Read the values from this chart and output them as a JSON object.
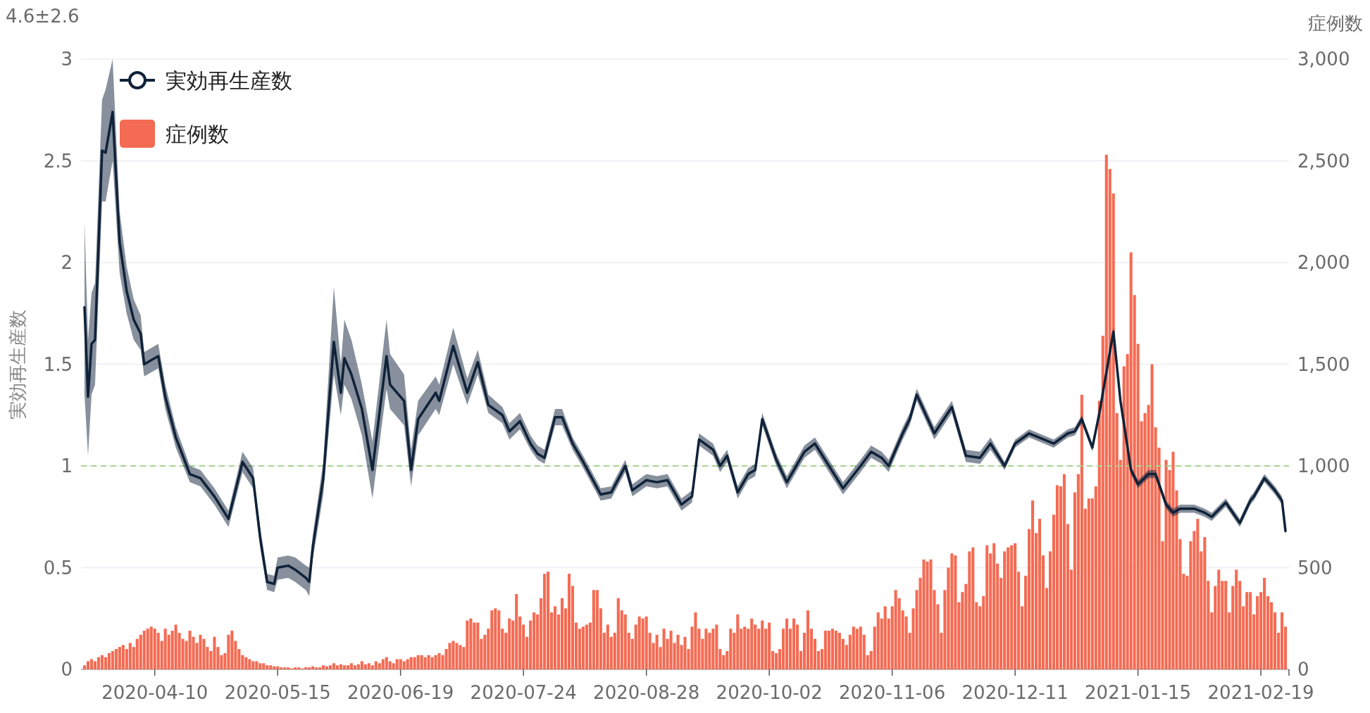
{
  "chart_data": {
    "type": "bar",
    "ylabel": "実効再生産数",
    "y2label": "症例数",
    "annotations": [
      "4.6±2.6"
    ],
    "xlim": [
      "2020-03-20",
      "2021-02-27"
    ],
    "xticks": [
      "2020-04-10",
      "2020-05-15",
      "2020-06-19",
      "2020-07-24",
      "2020-08-28",
      "2020-10-02",
      "2020-11-06",
      "2020-12-11",
      "2021-01-15",
      "2021-02-19"
    ],
    "ylim": [
      0,
      3
    ],
    "yticks": [
      0,
      0.5,
      1,
      1.5,
      2,
      2.5,
      3
    ],
    "y2lim": [
      0,
      3000
    ],
    "y2ticks": [
      0,
      500,
      {
        "value": 1000,
        "label": "1,000"
      },
      {
        "value": 1500,
        "label": "1,500"
      },
      {
        "value": 2000,
        "label": "2,000"
      },
      {
        "value": 2500,
        "label": "2,500"
      },
      {
        "value": 3000,
        "label": "3,000"
      }
    ],
    "grid": "y",
    "legend": "top left",
    "ref_lines": [
      {
        "axis": "y",
        "value": 1,
        "color": "#a8d48e",
        "line_style": "dashed"
      }
    ],
    "series": [
      {
        "name": "実効再生産数",
        "type": "line",
        "color": "#0f2239",
        "x": [
          "2020-03-21",
          "2020-03-22",
          "2020-03-23",
          "2020-03-24",
          "2020-03-26",
          "2020-03-27",
          "2020-03-29",
          "2020-03-31",
          "2020-04-02",
          "2020-04-04",
          "2020-04-06",
          "2020-04-07",
          "2020-04-11",
          "2020-04-13",
          "2020-04-16",
          "2020-04-20",
          "2020-04-23",
          "2020-04-27",
          "2020-05-01",
          "2020-05-05",
          "2020-05-08",
          "2020-05-10",
          "2020-05-12",
          "2020-05-14",
          "2020-05-15",
          "2020-05-18",
          "2020-05-20",
          "2020-05-23",
          "2020-05-24",
          "2020-05-25",
          "2020-05-28",
          "2020-05-31",
          "2020-06-02",
          "2020-06-03",
          "2020-06-05",
          "2020-06-08",
          "2020-06-11",
          "2020-06-15",
          "2020-06-16",
          "2020-06-20",
          "2020-06-22",
          "2020-06-24",
          "2020-06-29",
          "2020-06-30",
          "2020-07-04",
          "2020-07-08",
          "2020-07-11",
          "2020-07-14",
          "2020-07-18",
          "2020-07-20",
          "2020-07-23",
          "2020-07-26",
          "2020-07-28",
          "2020-07-30",
          "2020-08-02",
          "2020-08-04",
          "2020-08-07",
          "2020-08-10",
          "2020-08-15",
          "2020-08-18",
          "2020-08-22",
          "2020-08-24",
          "2020-08-28",
          "2020-08-31",
          "2020-09-03",
          "2020-09-07",
          "2020-09-10",
          "2020-09-12",
          "2020-09-16",
          "2020-09-18",
          "2020-09-20",
          "2020-09-23",
          "2020-09-26",
          "2020-09-28",
          "2020-09-30",
          "2020-10-04",
          "2020-10-07",
          "2020-10-12",
          "2020-10-15",
          "2020-10-19",
          "2020-10-23",
          "2020-10-28",
          "2020-10-31",
          "2020-11-03",
          "2020-11-05",
          "2020-11-09",
          "2020-11-11",
          "2020-11-13",
          "2020-11-18",
          "2020-11-23",
          "2020-11-27",
          "2020-12-01",
          "2020-12-04",
          "2020-12-08",
          "2020-12-11",
          "2020-12-15",
          "2020-12-22",
          "2020-12-26",
          "2020-12-28",
          "2020-12-30",
          "2021-01-02",
          "2021-01-04",
          "2021-01-08",
          "2021-01-10",
          "2021-01-13",
          "2021-01-15",
          "2021-01-18",
          "2021-01-20",
          "2021-01-23",
          "2021-01-25",
          "2021-01-27",
          "2021-01-31",
          "2021-02-03",
          "2021-02-05",
          "2021-02-09",
          "2021-02-13",
          "2021-02-16",
          "2021-02-17",
          "2021-02-20",
          "2021-02-23",
          "2021-02-25",
          "2021-02-26"
        ],
        "values": [
          1.78,
          1.34,
          1.6,
          1.62,
          2.55,
          2.54,
          2.74,
          2.1,
          1.86,
          1.72,
          1.65,
          1.5,
          1.54,
          1.34,
          1.14,
          0.96,
          0.94,
          0.85,
          0.74,
          1.02,
          0.94,
          0.65,
          0.43,
          0.42,
          0.5,
          0.51,
          0.49,
          0.45,
          0.43,
          0.6,
          0.94,
          1.61,
          1.36,
          1.53,
          1.45,
          1.28,
          0.98,
          1.54,
          1.4,
          1.32,
          0.98,
          1.23,
          1.36,
          1.32,
          1.59,
          1.36,
          1.51,
          1.3,
          1.25,
          1.17,
          1.22,
          1.11,
          1.06,
          1.04,
          1.24,
          1.24,
          1.11,
          1.02,
          0.86,
          0.87,
          1.0,
          0.88,
          0.93,
          0.92,
          0.93,
          0.81,
          0.85,
          1.13,
          1.08,
          1.0,
          1.05,
          0.87,
          0.96,
          0.98,
          1.23,
          1.03,
          0.92,
          1.07,
          1.11,
          1.0,
          0.89,
          1.0,
          1.07,
          1.04,
          1.0,
          1.16,
          1.23,
          1.35,
          1.16,
          1.29,
          1.05,
          1.04,
          1.11,
          1.0,
          1.11,
          1.16,
          1.11,
          1.16,
          1.17,
          1.23,
          1.09,
          1.26,
          1.66,
          1.32,
          0.98,
          0.91,
          0.96,
          0.96,
          0.81,
          0.77,
          0.79,
          0.79,
          0.77,
          0.75,
          0.82,
          0.72,
          0.83,
          0.85,
          0.94,
          0.88,
          0.83,
          0.68
        ],
        "lower": [
          1.35,
          1.05,
          1.35,
          1.4,
          2.3,
          2.3,
          2.5,
          1.95,
          1.75,
          1.62,
          1.57,
          1.44,
          1.48,
          1.28,
          1.09,
          0.92,
          0.9,
          0.81,
          0.7,
          0.97,
          0.89,
          0.6,
          0.39,
          0.38,
          0.44,
          0.45,
          0.43,
          0.39,
          0.36,
          0.54,
          0.86,
          1.45,
          1.25,
          1.4,
          1.33,
          1.15,
          0.84,
          1.38,
          1.28,
          1.2,
          0.9,
          1.15,
          1.28,
          1.25,
          1.5,
          1.3,
          1.45,
          1.26,
          1.21,
          1.13,
          1.18,
          1.08,
          1.03,
          1.01,
          1.2,
          1.2,
          1.08,
          0.99,
          0.83,
          0.84,
          0.97,
          0.85,
          0.9,
          0.89,
          0.9,
          0.78,
          0.82,
          1.1,
          1.05,
          0.97,
          1.02,
          0.84,
          0.93,
          0.95,
          1.2,
          1.0,
          0.89,
          1.04,
          1.08,
          0.97,
          0.86,
          0.97,
          1.04,
          1.01,
          0.97,
          1.13,
          1.2,
          1.32,
          1.13,
          1.26,
          1.02,
          1.01,
          1.08,
          0.98,
          1.09,
          1.14,
          1.09,
          1.14,
          1.15,
          1.21,
          1.07,
          1.24,
          1.64,
          1.3,
          0.96,
          0.89,
          0.94,
          0.94,
          0.79,
          0.75,
          0.77,
          0.77,
          0.75,
          0.73,
          0.8,
          0.7,
          0.81,
          0.83,
          0.92,
          0.86,
          0.81,
          0.66
        ],
        "upper": [
          2.2,
          1.62,
          1.85,
          1.9,
          2.8,
          2.85,
          3.0,
          2.25,
          1.98,
          1.82,
          1.74,
          1.56,
          1.6,
          1.4,
          1.19,
          1.0,
          0.98,
          0.89,
          0.78,
          1.07,
          0.99,
          0.7,
          0.47,
          0.46,
          0.55,
          0.56,
          0.55,
          0.51,
          0.5,
          0.66,
          1.02,
          1.88,
          1.5,
          1.72,
          1.62,
          1.4,
          1.12,
          1.72,
          1.55,
          1.45,
          1.08,
          1.32,
          1.44,
          1.4,
          1.68,
          1.43,
          1.57,
          1.35,
          1.29,
          1.21,
          1.26,
          1.15,
          1.1,
          1.08,
          1.28,
          1.28,
          1.14,
          1.05,
          0.89,
          0.9,
          1.03,
          0.91,
          0.96,
          0.95,
          0.96,
          0.84,
          0.88,
          1.16,
          1.11,
          1.03,
          1.08,
          0.9,
          0.99,
          1.01,
          1.26,
          1.06,
          0.95,
          1.1,
          1.14,
          1.03,
          0.92,
          1.03,
          1.1,
          1.07,
          1.03,
          1.19,
          1.26,
          1.38,
          1.19,
          1.32,
          1.08,
          1.07,
          1.14,
          1.02,
          1.13,
          1.18,
          1.13,
          1.18,
          1.19,
          1.25,
          1.11,
          1.28,
          1.68,
          1.34,
          1.0,
          0.93,
          0.98,
          0.98,
          0.83,
          0.79,
          0.81,
          0.81,
          0.79,
          0.77,
          0.84,
          0.74,
          0.85,
          0.87,
          0.96,
          0.9,
          0.85,
          0.7
        ]
      },
      {
        "name": "症例数",
        "axis": "y2",
        "color": "#f46b53",
        "x": [
          "2020-03-21",
          "2020-03-22",
          "2020-03-23",
          "2020-03-24",
          "2020-03-25",
          "2020-03-26",
          "2020-03-27",
          "2020-03-28",
          "2020-03-29",
          "2020-03-30",
          "2020-03-31",
          "2020-04-01",
          "2020-04-02",
          "2020-04-03",
          "2020-04-04",
          "2020-04-05",
          "2020-04-06",
          "2020-04-07",
          "2020-04-08",
          "2020-04-09",
          "2020-04-10",
          "2020-04-11",
          "2020-04-12",
          "2020-04-13",
          "2020-04-14",
          "2020-04-15",
          "2020-04-16",
          "2020-04-17",
          "2020-04-18",
          "2020-04-19",
          "2020-04-20",
          "2020-04-21",
          "2020-04-22",
          "2020-04-23",
          "2020-04-24",
          "2020-04-25",
          "2020-04-26",
          "2020-04-27",
          "2020-04-28",
          "2020-04-29",
          "2020-04-30",
          "2020-05-01",
          "2020-05-02",
          "2020-05-03",
          "2020-05-04",
          "2020-05-05",
          "2020-05-06",
          "2020-05-07",
          "2020-05-08",
          "2020-05-09",
          "2020-05-10",
          "2020-05-11",
          "2020-05-12",
          "2020-05-13",
          "2020-05-14",
          "2020-05-15",
          "2020-05-16",
          "2020-05-17",
          "2020-05-18",
          "2020-05-19",
          "2020-05-20",
          "2020-05-21",
          "2020-05-22",
          "2020-05-23",
          "2020-05-24",
          "2020-05-25",
          "2020-05-26",
          "2020-05-27",
          "2020-05-28",
          "2020-05-29",
          "2020-05-30",
          "2020-05-31",
          "2020-06-01",
          "2020-06-02",
          "2020-06-03",
          "2020-06-04",
          "2020-06-05",
          "2020-06-06",
          "2020-06-07",
          "2020-06-08",
          "2020-06-09",
          "2020-06-10",
          "2020-06-11",
          "2020-06-12",
          "2020-06-13",
          "2020-06-14",
          "2020-06-15",
          "2020-06-16",
          "2020-06-17",
          "2020-06-18",
          "2020-06-19",
          "2020-06-20",
          "2020-06-21",
          "2020-06-22",
          "2020-06-23",
          "2020-06-24",
          "2020-06-25",
          "2020-06-26",
          "2020-06-27",
          "2020-06-28",
          "2020-06-29",
          "2020-06-30",
          "2020-07-01",
          "2020-07-02",
          "2020-07-03",
          "2020-07-04",
          "2020-07-05",
          "2020-07-06",
          "2020-07-07",
          "2020-07-08",
          "2020-07-09",
          "2020-07-10",
          "2020-07-11",
          "2020-07-12",
          "2020-07-13",
          "2020-07-14",
          "2020-07-15",
          "2020-07-16",
          "2020-07-17",
          "2020-07-18",
          "2020-07-19",
          "2020-07-20",
          "2020-07-21",
          "2020-07-22",
          "2020-07-23",
          "2020-07-24",
          "2020-07-25",
          "2020-07-26",
          "2020-07-27",
          "2020-07-28",
          "2020-07-29",
          "2020-07-30",
          "2020-07-31",
          "2020-08-01",
          "2020-08-02",
          "2020-08-03",
          "2020-08-04",
          "2020-08-05",
          "2020-08-06",
          "2020-08-07",
          "2020-08-08",
          "2020-08-09",
          "2020-08-10",
          "2020-08-11",
          "2020-08-12",
          "2020-08-13",
          "2020-08-14",
          "2020-08-15",
          "2020-08-16",
          "2020-08-17",
          "2020-08-18",
          "2020-08-19",
          "2020-08-20",
          "2020-08-21",
          "2020-08-22",
          "2020-08-23",
          "2020-08-24",
          "2020-08-25",
          "2020-08-26",
          "2020-08-27",
          "2020-08-28",
          "2020-08-29",
          "2020-08-30",
          "2020-08-31",
          "2020-09-01",
          "2020-09-02",
          "2020-09-03",
          "2020-09-04",
          "2020-09-05",
          "2020-09-06",
          "2020-09-07",
          "2020-09-08",
          "2020-09-09",
          "2020-09-10",
          "2020-09-11",
          "2020-09-12",
          "2020-09-13",
          "2020-09-14",
          "2020-09-15",
          "2020-09-16",
          "2020-09-17",
          "2020-09-18",
          "2020-09-19",
          "2020-09-20",
          "2020-09-21",
          "2020-09-22",
          "2020-09-23",
          "2020-09-24",
          "2020-09-25",
          "2020-09-26",
          "2020-09-27",
          "2020-09-28",
          "2020-09-29",
          "2020-09-30",
          "2020-10-01",
          "2020-10-02",
          "2020-10-03",
          "2020-10-04",
          "2020-10-05",
          "2020-10-06",
          "2020-10-07",
          "2020-10-08",
          "2020-10-09",
          "2020-10-10",
          "2020-10-11",
          "2020-10-12",
          "2020-10-13",
          "2020-10-14",
          "2020-10-15",
          "2020-10-16",
          "2020-10-17",
          "2020-10-18",
          "2020-10-19",
          "2020-10-20",
          "2020-10-21",
          "2020-10-22",
          "2020-10-23",
          "2020-10-24",
          "2020-10-25",
          "2020-10-26",
          "2020-10-27",
          "2020-10-28",
          "2020-10-29",
          "2020-10-30",
          "2020-10-31",
          "2020-11-01",
          "2020-11-02",
          "2020-11-03",
          "2020-11-04",
          "2020-11-05",
          "2020-11-06",
          "2020-11-07",
          "2020-11-08",
          "2020-11-09",
          "2020-11-10",
          "2020-11-11",
          "2020-11-12",
          "2020-11-13",
          "2020-11-14",
          "2020-11-15",
          "2020-11-16",
          "2020-11-17",
          "2020-11-18",
          "2020-11-19",
          "2020-11-20",
          "2020-11-21",
          "2020-11-22",
          "2020-11-23",
          "2020-11-24",
          "2020-11-25",
          "2020-11-26",
          "2020-11-27",
          "2020-11-28",
          "2020-11-29",
          "2020-11-30",
          "2020-12-01",
          "2020-12-02",
          "2020-12-03",
          "2020-12-04",
          "2020-12-05",
          "2020-12-06",
          "2020-12-07",
          "2020-12-08",
          "2020-12-09",
          "2020-12-10",
          "2020-12-11",
          "2020-12-12",
          "2020-12-13",
          "2020-12-14",
          "2020-12-15",
          "2020-12-16",
          "2020-12-17",
          "2020-12-18",
          "2020-12-19",
          "2020-12-20",
          "2020-12-21",
          "2020-12-22",
          "2020-12-23",
          "2020-12-24",
          "2020-12-25",
          "2020-12-26",
          "2020-12-27",
          "2020-12-28",
          "2020-12-29",
          "2020-12-30",
          "2020-12-31",
          "2021-01-01",
          "2021-01-02",
          "2021-01-03",
          "2021-01-04",
          "2021-01-05",
          "2021-01-06",
          "2021-01-07",
          "2021-01-08",
          "2021-01-09",
          "2021-01-10",
          "2021-01-11",
          "2021-01-12",
          "2021-01-13",
          "2021-01-14",
          "2021-01-15",
          "2021-01-16",
          "2021-01-17",
          "2021-01-18",
          "2021-01-19",
          "2021-01-20",
          "2021-01-21",
          "2021-01-22",
          "2021-01-23",
          "2021-01-24",
          "2021-01-25",
          "2021-01-26",
          "2021-01-27",
          "2021-01-28",
          "2021-01-29",
          "2021-01-30",
          "2021-01-31",
          "2021-02-01",
          "2021-02-02",
          "2021-02-03",
          "2021-02-04",
          "2021-02-05",
          "2021-02-06",
          "2021-02-07",
          "2021-02-08",
          "2021-02-09",
          "2021-02-10",
          "2021-02-11",
          "2021-02-12",
          "2021-02-13",
          "2021-02-14",
          "2021-02-15",
          "2021-02-16",
          "2021-02-17",
          "2021-02-18",
          "2021-02-19",
          "2021-02-20",
          "2021-02-21",
          "2021-02-22",
          "2021-02-23",
          "2021-02-24",
          "2021-02-25",
          "2021-02-26"
        ],
        "values": [
          20,
          40,
          50,
          40,
          60,
          70,
          60,
          80,
          90,
          100,
          110,
          120,
          100,
          130,
          110,
          150,
          170,
          190,
          200,
          210,
          200,
          180,
          140,
          200,
          170,
          190,
          220,
          180,
          150,
          140,
          190,
          160,
          130,
          170,
          150,
          110,
          90,
          160,
          110,
          70,
          80,
          170,
          190,
          140,
          100,
          70,
          60,
          50,
          40,
          40,
          30,
          30,
          20,
          20,
          15,
          15,
          10,
          10,
          10,
          5,
          10,
          10,
          5,
          10,
          10,
          15,
          10,
          10,
          20,
          15,
          20,
          30,
          20,
          25,
          20,
          20,
          30,
          20,
          25,
          40,
          25,
          30,
          20,
          40,
          30,
          50,
          60,
          40,
          30,
          50,
          50,
          40,
          50,
          60,
          60,
          70,
          70,
          60,
          70,
          60,
          70,
          80,
          70,
          100,
          130,
          140,
          130,
          120,
          110,
          240,
          250,
          230,
          230,
          150,
          170,
          200,
          290,
          300,
          290,
          200,
          180,
          250,
          240,
          370,
          260,
          220,
          160,
          240,
          280,
          270,
          350,
          470,
          480,
          280,
          310,
          270,
          350,
          300,
          470,
          410,
          230,
          200,
          210,
          220,
          230,
          390,
          390,
          300,
          180,
          220,
          160,
          180,
          350,
          290,
          270,
          180,
          150,
          220,
          260,
          250,
          260,
          180,
          130,
          170,
          110,
          200,
          150,
          190,
          130,
          170,
          120,
          160,
          100,
          210,
          280,
          200,
          150,
          200,
          180,
          200,
          220,
          100,
          70,
          90,
          200,
          180,
          270,
          200,
          210,
          200,
          250,
          220,
          200,
          240,
          200,
          230,
          90,
          80,
          100,
          200,
          250,
          200,
          250,
          220,
          90,
          180,
          290,
          200,
          150,
          90,
          100,
          190,
          190,
          200,
          190,
          180,
          150,
          120,
          170,
          210,
          200,
          210,
          170,
          70,
          90,
          210,
          280,
          250,
          310,
          250,
          310,
          390,
          350,
          290,
          260,
          180,
          300,
          390,
          450,
          540,
          530,
          540,
          390,
          320,
          180,
          390,
          500,
          570,
          560,
          330,
          380,
          420,
          580,
          600,
          330,
          310,
          360,
          610,
          570,
          620,
          520,
          450,
          580,
          600,
          610,
          620,
          480,
          310,
          460,
          690,
          830,
          670,
          740,
          560,
          400,
          580,
          760,
          905,
          900,
          960,
          715,
          490,
          870,
          960,
          1350,
          790,
          840,
          840,
          900,
          1320,
          1640,
          2530,
          2460,
          2340,
          1260,
          1030,
          1490,
          1550,
          2050,
          1840,
          1600,
          1220,
          1260,
          1300,
          1500,
          1190,
          1090,
          630,
          1030,
          980,
          1070,
          880,
          640,
          470,
          460,
          630,
          680,
          740,
          580,
          650,
          435,
          280,
          410,
          490,
          435,
          435,
          280,
          410,
          490,
          435,
          310,
          380,
          380,
          270,
          360,
          380,
          450,
          360,
          330,
          280,
          180,
          280,
          210
        ]
      }
    ]
  }
}
